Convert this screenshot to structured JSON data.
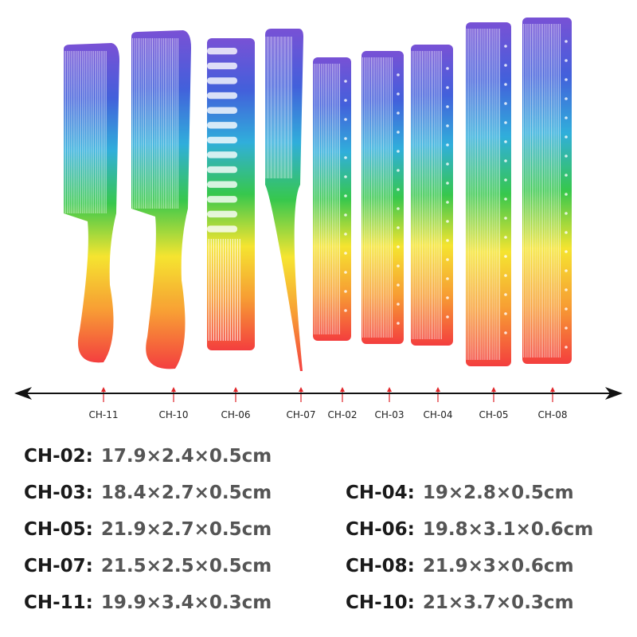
{
  "combs": [
    {
      "code": "CH-11",
      "shape": "handle",
      "tooth": "fine"
    },
    {
      "code": "CH-10",
      "shape": "handle",
      "tooth": "medium"
    },
    {
      "code": "CH-06",
      "shape": "wide",
      "tooth": "wide"
    },
    {
      "code": "CH-07",
      "shape": "tail",
      "tooth": "fine"
    },
    {
      "code": "CH-02",
      "shape": "straight",
      "tooth": "fine"
    },
    {
      "code": "CH-03",
      "shape": "straight",
      "tooth": "fine"
    },
    {
      "code": "CH-04",
      "shape": "straight",
      "tooth": "fine"
    },
    {
      "code": "CH-05",
      "shape": "straight",
      "tooth": "fine"
    },
    {
      "code": "CH-08",
      "shape": "straight",
      "tooth": "fine"
    }
  ],
  "gradient_colors": [
    "#6a3fd1",
    "#2f4fd8",
    "#1aa6d8",
    "#22c23a",
    "#f5e21a",
    "#f7931e",
    "#f22a2a"
  ],
  "arrow_mark_color": "#e0262a",
  "specs": [
    {
      "code": "CH-02:",
      "dims": "17.9×2.4×0.5cm"
    },
    {
      "code": "CH-03:",
      "dims": "18.4×2.7×0.5cm"
    },
    {
      "code": "CH-04:",
      "dims": "19×2.8×0.5cm"
    },
    {
      "code": "CH-05:",
      "dims": "21.9×2.7×0.5cm"
    },
    {
      "code": "CH-06:",
      "dims": "19.8×3.1×0.6cm"
    },
    {
      "code": "CH-07:",
      "dims": "21.5×2.5×0.5cm"
    },
    {
      "code": "CH-08:",
      "dims": "21.9×3×0.6cm"
    },
    {
      "code": "CH-11:",
      "dims": "19.9×3.4×0.3cm"
    },
    {
      "code": "CH-10:",
      "dims": "21×3.7×0.3cm"
    }
  ]
}
